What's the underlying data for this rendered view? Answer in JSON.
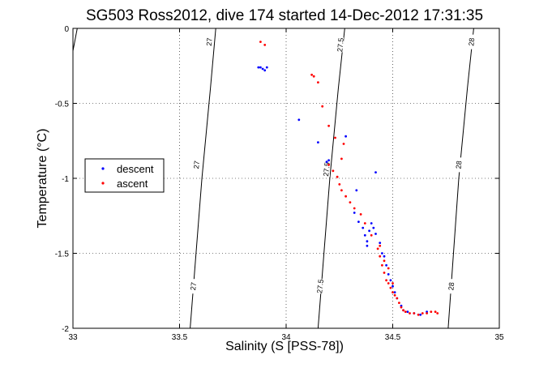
{
  "chart_data": {
    "type": "scatter",
    "title": "SG503 Ross2012, dive 174 started 14-Dec-2012 17:31:35",
    "xlabel": "Salinity (S [PSS-78])",
    "ylabel": "Temperature (°C)",
    "xlim": [
      33,
      35
    ],
    "ylim": [
      -2,
      0
    ],
    "x_ticks": [
      "33",
      "33.5",
      "34",
      "34.5",
      "35"
    ],
    "y_ticks": [
      "0",
      "-0.5",
      "-1",
      "-1.5",
      "-2"
    ],
    "grid": true,
    "legend_position": "middle-left",
    "legend": [
      {
        "name": "descent",
        "color": "#0000ff"
      },
      {
        "name": "ascent",
        "color": "#ff0000"
      }
    ],
    "contours": [
      {
        "label": "27",
        "points": [
          [
            33.0,
            -0.15
          ],
          [
            33.02,
            0.0
          ]
        ],
        "label_at": []
      },
      {
        "label": "27",
        "points": [
          [
            33.55,
            -2.0
          ],
          [
            33.605,
            -1.0
          ],
          [
            33.645,
            -0.4
          ],
          [
            33.67,
            0.0
          ]
        ],
        "label_at": [
          [
            33.565,
            -1.72
          ],
          [
            33.58,
            -0.91
          ],
          [
            33.64,
            -0.09
          ]
        ]
      },
      {
        "label": "27.5",
        "points": [
          [
            34.15,
            -2.0
          ],
          [
            34.205,
            -1.0
          ],
          [
            34.245,
            -0.4
          ],
          [
            34.275,
            0.0
          ]
        ],
        "label_at": [
          [
            34.16,
            -1.72
          ],
          [
            34.19,
            -0.94
          ],
          [
            34.255,
            -0.11
          ]
        ]
      },
      {
        "label": "28",
        "points": [
          [
            34.76,
            -2.0
          ],
          [
            34.81,
            -1.0
          ],
          [
            34.85,
            -0.4
          ],
          [
            34.88,
            0.0
          ]
        ],
        "label_at": [
          [
            34.775,
            -1.72
          ],
          [
            34.81,
            -0.91
          ],
          [
            34.87,
            -0.09
          ]
        ]
      }
    ],
    "series": [
      {
        "name": "descent",
        "color": "#0000ff",
        "points": [
          [
            33.87,
            -0.26
          ],
          [
            33.88,
            -0.26
          ],
          [
            33.89,
            -0.27
          ],
          [
            33.9,
            -0.28
          ],
          [
            33.91,
            -0.26
          ],
          [
            34.06,
            -0.61
          ],
          [
            34.15,
            -0.76
          ],
          [
            34.19,
            -0.89
          ],
          [
            34.2,
            -0.88
          ],
          [
            34.28,
            -0.72
          ],
          [
            34.42,
            -0.96
          ],
          [
            34.33,
            -1.08
          ],
          [
            34.32,
            -1.23
          ],
          [
            34.34,
            -1.29
          ],
          [
            34.36,
            -1.33
          ],
          [
            34.37,
            -1.38
          ],
          [
            34.38,
            -1.42
          ],
          [
            34.38,
            -1.45
          ],
          [
            34.39,
            -1.35
          ],
          [
            34.4,
            -1.3
          ],
          [
            34.41,
            -1.33
          ],
          [
            34.42,
            -1.37
          ],
          [
            34.44,
            -1.43
          ],
          [
            34.45,
            -1.5
          ],
          [
            34.46,
            -1.52
          ],
          [
            34.47,
            -1.58
          ],
          [
            34.48,
            -1.64
          ],
          [
            34.49,
            -1.68
          ],
          [
            34.5,
            -1.72
          ],
          [
            34.51,
            -1.76
          ],
          [
            34.52,
            -1.8
          ],
          [
            34.54,
            -1.85
          ],
          [
            34.55,
            -1.88
          ],
          [
            34.57,
            -1.89
          ],
          [
            34.6,
            -1.9
          ],
          [
            34.63,
            -1.91
          ],
          [
            34.66,
            -1.89
          ]
        ]
      },
      {
        "name": "ascent",
        "color": "#ff0000",
        "points": [
          [
            33.88,
            -0.09
          ],
          [
            33.9,
            -0.11
          ],
          [
            34.12,
            -0.31
          ],
          [
            34.13,
            -0.32
          ],
          [
            34.15,
            -0.36
          ],
          [
            34.17,
            -0.52
          ],
          [
            34.2,
            -0.65
          ],
          [
            34.23,
            -0.73
          ],
          [
            34.27,
            -0.77
          ],
          [
            34.26,
            -0.87
          ],
          [
            34.2,
            -0.91
          ],
          [
            34.22,
            -0.95
          ],
          [
            34.24,
            -0.99
          ],
          [
            34.25,
            -1.04
          ],
          [
            34.26,
            -1.08
          ],
          [
            34.28,
            -1.12
          ],
          [
            34.3,
            -1.16
          ],
          [
            34.32,
            -1.2
          ],
          [
            34.35,
            -1.24
          ],
          [
            34.37,
            -1.3
          ],
          [
            34.4,
            -1.38
          ],
          [
            34.43,
            -1.47
          ],
          [
            34.44,
            -1.52
          ],
          [
            34.45,
            -1.58
          ],
          [
            34.46,
            -1.63
          ],
          [
            34.47,
            -1.68
          ],
          [
            34.48,
            -1.7
          ],
          [
            34.49,
            -1.73
          ],
          [
            34.5,
            -1.76
          ],
          [
            34.51,
            -1.78
          ],
          [
            34.52,
            -1.8
          ],
          [
            34.53,
            -1.83
          ],
          [
            34.54,
            -1.86
          ],
          [
            34.55,
            -1.88
          ],
          [
            34.56,
            -1.89
          ],
          [
            34.58,
            -1.9
          ],
          [
            34.6,
            -1.9
          ],
          [
            34.62,
            -1.91
          ],
          [
            34.64,
            -1.9
          ],
          [
            34.66,
            -1.9
          ],
          [
            34.68,
            -1.89
          ],
          [
            34.7,
            -1.89
          ],
          [
            34.71,
            -1.9
          ],
          [
            34.44,
            -1.45
          ],
          [
            34.46,
            -1.55
          ],
          [
            34.48,
            -1.6
          ],
          [
            34.5,
            -1.7
          ]
        ]
      }
    ]
  }
}
